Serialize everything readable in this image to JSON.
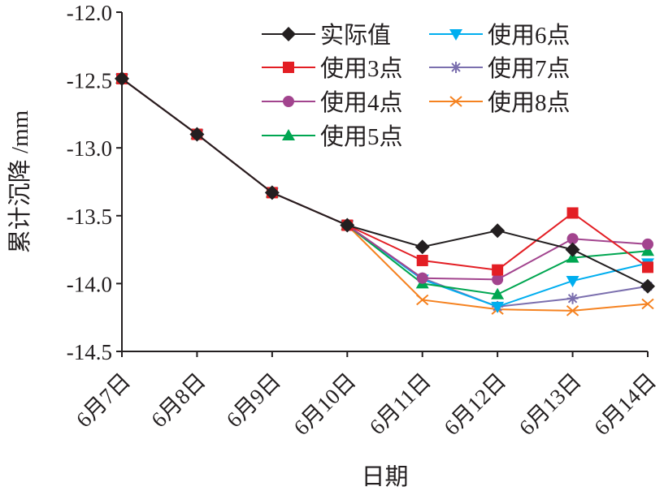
{
  "chart_data": {
    "type": "line",
    "title": "",
    "xlabel": "日期",
    "ylabel": "累计沉降 /mm",
    "ylim": [
      -14.5,
      -12.0
    ],
    "yticks": [
      "-12.0",
      "-12.5",
      "-13.0",
      "-13.5",
      "-14.0",
      "-14.5"
    ],
    "ytick_values": [
      -12.0,
      -12.5,
      -13.0,
      -13.5,
      -14.0,
      -14.5
    ],
    "categories": [
      "6月7日",
      "6月8日",
      "6月9日",
      "6月10日",
      "6月11日",
      "6月12日",
      "6月13日",
      "6月14日"
    ],
    "legend_position": "top-right",
    "series": [
      {
        "name": "实际值",
        "color": "#231f20",
        "marker": "diamond",
        "values": [
          -12.49,
          -12.9,
          -13.33,
          -13.57,
          -13.73,
          -13.61,
          -13.75,
          -14.02
        ]
      },
      {
        "name": "使用3点",
        "color": "#e31e24",
        "marker": "square",
        "values": [
          -12.49,
          -12.9,
          -13.33,
          -13.57,
          -13.83,
          -13.9,
          -13.48,
          -13.88
        ]
      },
      {
        "name": "使用4点",
        "color": "#a2448e",
        "marker": "circle",
        "values": [
          -12.49,
          -12.9,
          -13.33,
          -13.57,
          -13.96,
          -13.97,
          -13.67,
          -13.71
        ]
      },
      {
        "name": "使用5点",
        "color": "#00a651",
        "marker": "triangle-up",
        "values": [
          -12.49,
          -12.9,
          -13.33,
          -13.57,
          -14.0,
          -14.08,
          -13.81,
          -13.76
        ]
      },
      {
        "name": "使用6点",
        "color": "#00aeef",
        "marker": "triangle-down",
        "values": [
          -12.49,
          -12.9,
          -13.33,
          -13.57,
          -13.97,
          -14.17,
          -13.98,
          -13.85
        ]
      },
      {
        "name": "使用7点",
        "color": "#7b6fae",
        "marker": "star",
        "values": [
          -12.49,
          -12.9,
          -13.33,
          -13.57,
          -13.96,
          -14.17,
          -14.11,
          -14.02
        ]
      },
      {
        "name": "使用8点",
        "color": "#f58220",
        "marker": "x",
        "values": [
          -12.49,
          -12.9,
          -13.33,
          -13.57,
          -14.12,
          -14.19,
          -14.2,
          -14.15
        ]
      }
    ]
  }
}
